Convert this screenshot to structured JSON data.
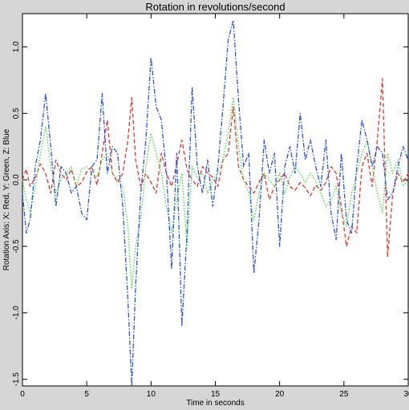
{
  "chart_data": {
    "type": "line",
    "title": "Rotation in revolutions/second",
    "xlabel": "Time in seconds",
    "ylabel": "Rotation Axis: X: Red, Y: Green, Z: Blue",
    "xlim": [
      0,
      30
    ],
    "ylim": [
      -1.55,
      1.25
    ],
    "xticks": [
      0,
      5,
      10,
      15,
      20,
      25,
      30
    ],
    "xtick_labels": [
      "0",
      "5",
      "10",
      "15",
      "20",
      "25",
      "30"
    ],
    "yticks": [
      -1.5,
      -1.0,
      -0.5,
      0.0,
      0.5,
      1.0
    ],
    "ytick_labels": [
      "-1.5",
      "-1.0",
      "-0.5",
      "0.0",
      "0.5",
      "1.0"
    ],
    "grid": false,
    "series": [
      {
        "color": "#e8332a",
        "dash": "dashed",
        "x": [
          0.0,
          0.3,
          0.6,
          1.0,
          1.4,
          1.8,
          2.2,
          2.6,
          3.0,
          3.4,
          3.8,
          4.2,
          4.6,
          5.0,
          5.4,
          5.8,
          6.2,
          6.6,
          7.0,
          7.4,
          7.8,
          8.2,
          8.5,
          8.8,
          9.2,
          9.6,
          10.0,
          10.4,
          10.8,
          11.2,
          11.6,
          12.0,
          12.4,
          12.8,
          13.2,
          13.6,
          14.0,
          14.4,
          14.8,
          15.2,
          15.6,
          16.0,
          16.4,
          16.8,
          17.2,
          17.6,
          18.0,
          18.4,
          18.8,
          19.2,
          19.6,
          20.0,
          20.4,
          20.8,
          21.2,
          21.6,
          22.0,
          22.4,
          22.8,
          23.2,
          23.6,
          24.0,
          24.4,
          24.8,
          25.2,
          25.6,
          26.0,
          26.4,
          26.8,
          27.2,
          27.6,
          28.0,
          28.4,
          28.8,
          29.2,
          29.6,
          30.0
        ],
        "values": [
          0.0,
          0.08,
          -0.05,
          0.02,
          0.12,
          0.05,
          -0.1,
          0.15,
          0.05,
          0.0,
          0.08,
          -0.05,
          -0.02,
          0.06,
          0.1,
          -0.04,
          0.2,
          0.45,
          0.05,
          -0.02,
          0.05,
          0.3,
          0.62,
          0.15,
          -0.05,
          0.05,
          -0.02,
          -0.1,
          0.2,
          0.05,
          -0.05,
          0.12,
          0.3,
          0.08,
          0.0,
          -0.05,
          0.1,
          0.05,
          0.02,
          -0.05,
          0.15,
          0.2,
          0.55,
          0.1,
          0.0,
          -0.05,
          -0.1,
          -0.02,
          0.05,
          -0.15,
          -0.05,
          0.0,
          0.05,
          -0.05,
          -0.08,
          -0.02,
          -0.06,
          -0.12,
          -0.04,
          -0.08,
          -0.02,
          0.1,
          0.05,
          -0.2,
          -0.5,
          -0.35,
          -0.4,
          0.1,
          0.2,
          -0.05,
          0.3,
          0.76,
          -0.58,
          -0.1,
          0.05,
          -0.02,
          0.05
        ]
      },
      {
        "color": "#3fdc3a",
        "dash": "dotted",
        "x": [
          0.0,
          0.3,
          0.6,
          1.0,
          1.4,
          1.8,
          2.2,
          2.6,
          3.0,
          3.4,
          3.8,
          4.2,
          4.6,
          5.0,
          5.4,
          5.8,
          6.2,
          6.6,
          7.0,
          7.4,
          7.8,
          8.2,
          8.5,
          8.8,
          9.2,
          9.6,
          10.0,
          10.4,
          10.8,
          11.2,
          11.6,
          12.0,
          12.4,
          12.8,
          13.2,
          13.6,
          14.0,
          14.4,
          14.8,
          15.2,
          15.6,
          16.0,
          16.4,
          16.8,
          17.2,
          17.6,
          18.0,
          18.4,
          18.8,
          19.2,
          19.6,
          20.0,
          20.4,
          20.8,
          21.2,
          21.6,
          22.0,
          22.4,
          22.8,
          23.2,
          23.6,
          24.0,
          24.4,
          24.8,
          25.2,
          25.6,
          26.0,
          26.4,
          26.8,
          27.2,
          27.6,
          28.0,
          28.4,
          28.8,
          29.2,
          29.6,
          30.0
        ],
        "values": [
          0.0,
          -0.15,
          -0.25,
          -0.05,
          0.2,
          0.4,
          0.1,
          -0.1,
          0.0,
          0.05,
          0.1,
          -0.05,
          0.08,
          0.1,
          0.05,
          0.02,
          0.15,
          0.2,
          0.05,
          0.0,
          -0.05,
          -0.35,
          -0.82,
          -0.5,
          -0.3,
          0.1,
          0.35,
          0.2,
          0.05,
          -0.2,
          -0.4,
          -0.15,
          0.05,
          -0.5,
          0.1,
          0.02,
          0.05,
          -0.1,
          0.0,
          0.05,
          0.15,
          0.35,
          0.62,
          0.25,
          0.0,
          -0.1,
          -0.3,
          -0.1,
          0.05,
          0.0,
          -0.05,
          0.05,
          -0.1,
          0.02,
          0.1,
          0.05,
          -0.02,
          0.05,
          0.0,
          -0.1,
          -0.2,
          -0.15,
          -0.05,
          -0.25,
          -0.35,
          -0.1,
          0.05,
          0.2,
          0.3,
          0.1,
          -0.1,
          -0.25,
          0.2,
          0.05,
          0.15,
          -0.05,
          0.0
        ]
      },
      {
        "color": "#2a52e8",
        "dash": "dashdot",
        "x": [
          0.0,
          0.3,
          0.6,
          1.0,
          1.4,
          1.8,
          2.2,
          2.6,
          3.0,
          3.4,
          3.8,
          4.2,
          4.6,
          5.0,
          5.4,
          5.8,
          6.2,
          6.6,
          7.0,
          7.4,
          7.8,
          8.2,
          8.5,
          8.8,
          9.2,
          9.6,
          10.0,
          10.4,
          10.8,
          11.2,
          11.6,
          12.0,
          12.4,
          12.8,
          13.2,
          13.6,
          14.0,
          14.4,
          14.8,
          15.2,
          15.6,
          16.0,
          16.4,
          16.8,
          17.2,
          17.6,
          18.0,
          18.4,
          18.8,
          19.2,
          19.6,
          20.0,
          20.4,
          20.8,
          21.2,
          21.6,
          22.0,
          22.4,
          22.8,
          23.2,
          23.6,
          24.0,
          24.4,
          24.8,
          25.2,
          25.6,
          26.0,
          26.4,
          26.8,
          27.2,
          27.6,
          28.0,
          28.4,
          28.8,
          29.2,
          29.6,
          30.0
        ],
        "values": [
          -0.1,
          -0.4,
          -0.3,
          0.1,
          0.3,
          0.65,
          0.25,
          -0.2,
          0.1,
          0.05,
          -0.1,
          -0.05,
          -0.25,
          -0.3,
          0.1,
          0.15,
          0.65,
          0.05,
          0.25,
          0.2,
          -0.2,
          -0.9,
          -1.55,
          -0.8,
          -0.1,
          0.3,
          0.92,
          0.55,
          0.45,
          0.05,
          -0.67,
          0.2,
          -1.1,
          -0.4,
          0.7,
          0.1,
          -0.1,
          0.15,
          -0.2,
          0.1,
          0.55,
          1.05,
          1.2,
          0.6,
          0.1,
          0.2,
          -0.7,
          -0.3,
          0.3,
          0.05,
          0.2,
          -0.5,
          0.1,
          0.25,
          0.05,
          0.5,
          0.15,
          0.3,
          0.1,
          -0.05,
          0.3,
          -0.25,
          -0.45,
          0.2,
          -0.3,
          -0.4,
          0.1,
          0.45,
          0.3,
          0.1,
          0.25,
          0.2,
          -0.15,
          -0.1,
          0.1,
          0.25,
          0.15
        ]
      }
    ]
  }
}
